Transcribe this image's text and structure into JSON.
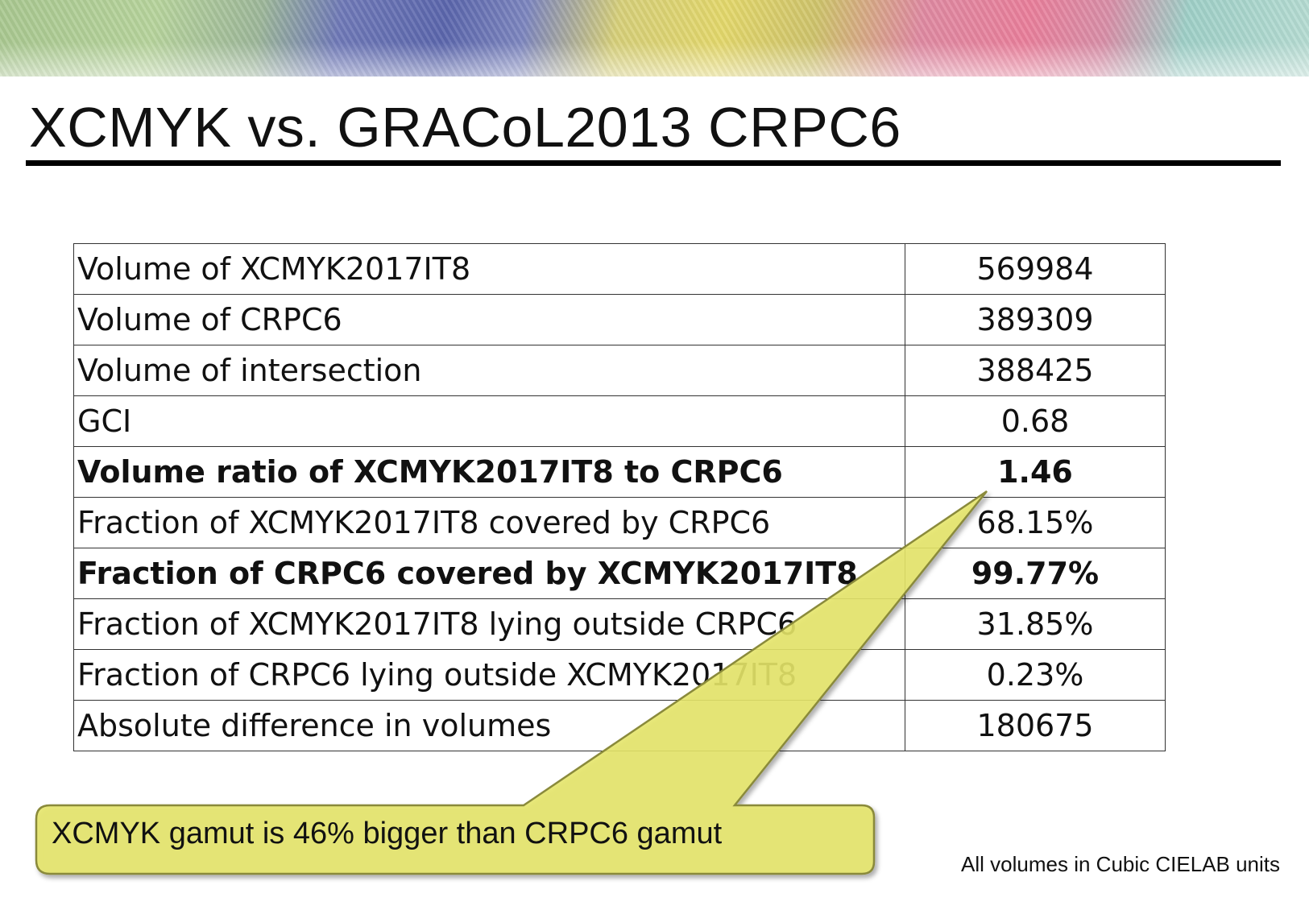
{
  "slide": {
    "title": "XCMYK vs. GRACoL2013 CRPC6",
    "rows": [
      {
        "label": "Volume of XCMYK2017IT8",
        "value": "569984",
        "bold": false
      },
      {
        "label": "Volume of CRPC6",
        "value": "389309",
        "bold": false
      },
      {
        "label": "Volume of intersection",
        "value": "388425",
        "bold": false
      },
      {
        "label": "GCI",
        "value": "0.68",
        "bold": false
      },
      {
        "label": "Volume ratio of XCMYK2017IT8 to CRPC6",
        "value": "1.46",
        "bold": true
      },
      {
        "label": "Fraction of XCMYK2017IT8 covered by CRPC6",
        "value": "68.15%",
        "bold": false
      },
      {
        "label": "Fraction of CRPC6 covered by XCMYK2017IT8",
        "value": "99.77%",
        "bold": true
      },
      {
        "label": "Fraction of XCMYK2017IT8 lying outside CRPC6",
        "value": "31.85%",
        "bold": false
      },
      {
        "label": "Fraction of CRPC6 lying outside XCMYK2017IT8",
        "value": "0.23%",
        "bold": false
      },
      {
        "label": "Absolute difference in volumes",
        "value": "180675",
        "bold": false
      }
    ],
    "callout": "XCMYK gamut is 46% bigger than CRPC6 gamut",
    "footnote": "All volumes in Cubic CIELAB units",
    "colors": {
      "callout_fill": "#e6e66a",
      "callout_stroke": "#8a8a3a",
      "rule": "#000000"
    }
  }
}
